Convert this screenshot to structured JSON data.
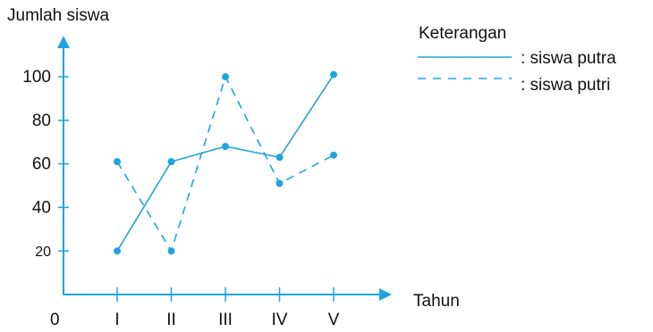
{
  "chart_data": {
    "type": "line",
    "ylabel": "Jumlah siswa",
    "xlabel": "Tahun",
    "origin_label": "0",
    "categories": [
      "I",
      "II",
      "III",
      "IV",
      "V"
    ],
    "y_ticks": [
      "20",
      "40",
      "60",
      "80",
      "100"
    ],
    "y_tick_values": [
      20,
      40,
      60,
      80,
      100
    ],
    "ylim": [
      0,
      120
    ],
    "legend": {
      "title": "Keterangan",
      "position": "top-right",
      "items": [
        ": siswa  putra",
        ": siswa putri"
      ]
    },
    "series": [
      {
        "name": "siswa putra",
        "style": "solid",
        "values": [
          20,
          61,
          68,
          63,
          101
        ]
      },
      {
        "name": "siswa putri",
        "style": "dashed",
        "values": [
          61,
          20,
          100,
          51,
          64
        ]
      }
    ],
    "grid": false,
    "color": "#1ea5dc"
  }
}
